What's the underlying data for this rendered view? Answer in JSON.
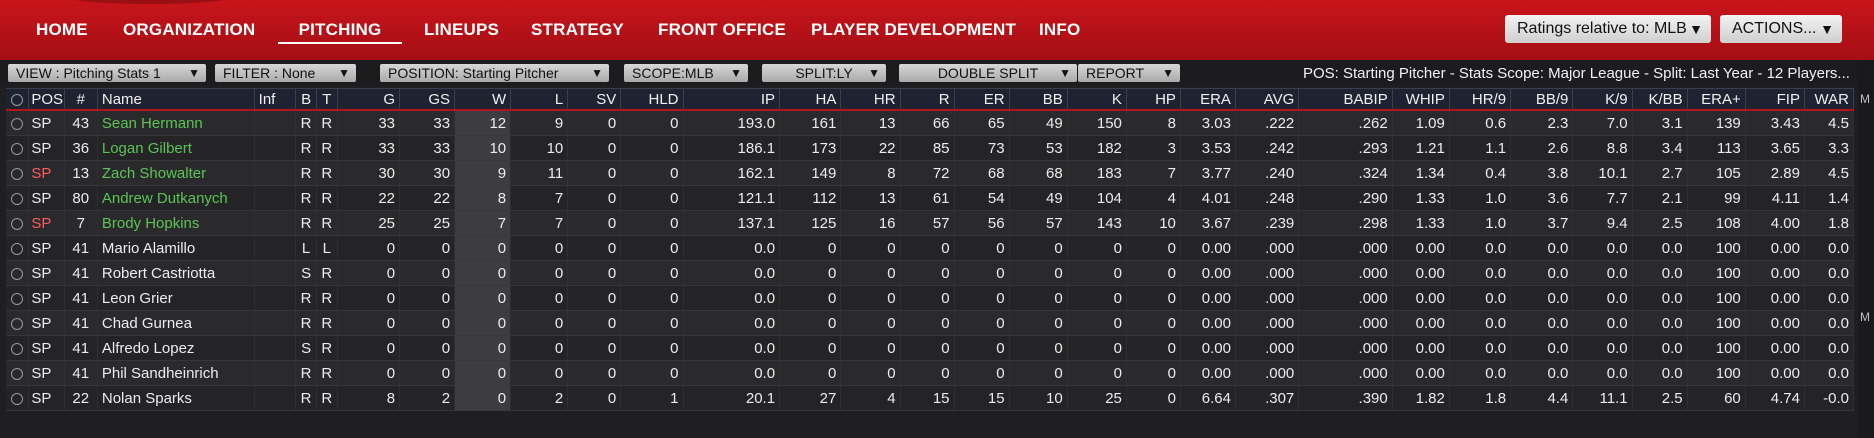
{
  "nav": {
    "items": [
      "HOME",
      "ORGANIZATION",
      "PITCHING",
      "LINEUPS",
      "STRATEGY",
      "FRONT OFFICE",
      "PLAYER DEVELOPMENT",
      "INFO"
    ],
    "active": "PITCHING",
    "ratings_dropdown": "Ratings relative to: MLB",
    "actions_dropdown": "ACTIONS..."
  },
  "filters": {
    "view": "VIEW : Pitching Stats 1",
    "filter": "FILTER : None",
    "position": "POSITION: Starting Pitcher",
    "scope": "SCOPE:MLB",
    "split": "SPLIT:LY",
    "double_split": "DOUBLE SPLIT",
    "report": "REPORT",
    "status": "POS: Starting Pitcher - Stats Scope: Major League - Split: Last Year - 12 Players..."
  },
  "side_strip": [
    "M",
    "M"
  ],
  "table": {
    "columns": [
      "POS",
      "#",
      "Name",
      "Inf",
      "B",
      "T",
      "G",
      "GS",
      "W",
      "L",
      "SV",
      "HLD",
      "IP",
      "HA",
      "HR",
      "R",
      "ER",
      "BB",
      "K",
      "HP",
      "ERA",
      "AVG",
      "BABIP",
      "WHIP",
      "HR/9",
      "BB/9",
      "K/9",
      "K/BB",
      "ERA+",
      "FIP",
      "WAR"
    ],
    "rows": [
      {
        "pos": "SP",
        "num": "43",
        "name": "Sean Hermann",
        "inf": "",
        "b": "R",
        "t": "R",
        "g": "33",
        "gs": "33",
        "w": "12",
        "l": "9",
        "sv": "0",
        "hld": "0",
        "ip": "193.0",
        "ha": "161",
        "hr": "13",
        "r": "66",
        "er": "65",
        "bb": "49",
        "k": "150",
        "hp": "8",
        "era": "3.03",
        "avg": ".222",
        "babip": ".262",
        "whip": "1.09",
        "hr9": "0.6",
        "bb9": "2.3",
        "k9": "7.0",
        "kbb": "3.1",
        "eraplus": "139",
        "fip": "3.43",
        "war": "4.5",
        "name_color": "green",
        "pos_color": "normal"
      },
      {
        "pos": "SP",
        "num": "36",
        "name": "Logan Gilbert",
        "inf": "",
        "b": "R",
        "t": "R",
        "g": "33",
        "gs": "33",
        "w": "10",
        "l": "10",
        "sv": "0",
        "hld": "0",
        "ip": "186.1",
        "ha": "173",
        "hr": "22",
        "r": "85",
        "er": "73",
        "bb": "53",
        "k": "182",
        "hp": "3",
        "era": "3.53",
        "avg": ".242",
        "babip": ".293",
        "whip": "1.21",
        "hr9": "1.1",
        "bb9": "2.6",
        "k9": "8.8",
        "kbb": "3.4",
        "eraplus": "113",
        "fip": "3.65",
        "war": "3.3",
        "name_color": "green",
        "pos_color": "normal"
      },
      {
        "pos": "SP",
        "num": "13",
        "name": "Zach Showalter",
        "inf": "",
        "b": "R",
        "t": "R",
        "g": "30",
        "gs": "30",
        "w": "9",
        "l": "11",
        "sv": "0",
        "hld": "0",
        "ip": "162.1",
        "ha": "149",
        "hr": "8",
        "r": "72",
        "er": "68",
        "bb": "68",
        "k": "183",
        "hp": "7",
        "era": "3.77",
        "avg": ".240",
        "babip": ".324",
        "whip": "1.34",
        "hr9": "0.4",
        "bb9": "3.8",
        "k9": "10.1",
        "kbb": "2.7",
        "eraplus": "105",
        "fip": "2.89",
        "war": "4.5",
        "name_color": "green",
        "pos_color": "red"
      },
      {
        "pos": "SP",
        "num": "80",
        "name": "Andrew Dutkanych",
        "inf": "",
        "b": "R",
        "t": "R",
        "g": "22",
        "gs": "22",
        "w": "8",
        "l": "7",
        "sv": "0",
        "hld": "0",
        "ip": "121.1",
        "ha": "112",
        "hr": "13",
        "r": "61",
        "er": "54",
        "bb": "49",
        "k": "104",
        "hp": "4",
        "era": "4.01",
        "avg": ".248",
        "babip": ".290",
        "whip": "1.33",
        "hr9": "1.0",
        "bb9": "3.6",
        "k9": "7.7",
        "kbb": "2.1",
        "eraplus": "99",
        "fip": "4.11",
        "war": "1.4",
        "name_color": "green",
        "pos_color": "normal"
      },
      {
        "pos": "SP",
        "num": "7",
        "name": "Brody Hopkins",
        "inf": "",
        "b": "R",
        "t": "R",
        "g": "25",
        "gs": "25",
        "w": "7",
        "l": "7",
        "sv": "0",
        "hld": "0",
        "ip": "137.1",
        "ha": "125",
        "hr": "16",
        "r": "57",
        "er": "56",
        "bb": "57",
        "k": "143",
        "hp": "10",
        "era": "3.67",
        "avg": ".239",
        "babip": ".298",
        "whip": "1.33",
        "hr9": "1.0",
        "bb9": "3.7",
        "k9": "9.4",
        "kbb": "2.5",
        "eraplus": "108",
        "fip": "4.00",
        "war": "1.8",
        "name_color": "green",
        "pos_color": "red"
      },
      {
        "pos": "SP",
        "num": "41",
        "name": "Mario Alamillo",
        "inf": "",
        "b": "L",
        "t": "L",
        "g": "0",
        "gs": "0",
        "w": "0",
        "l": "0",
        "sv": "0",
        "hld": "0",
        "ip": "0.0",
        "ha": "0",
        "hr": "0",
        "r": "0",
        "er": "0",
        "bb": "0",
        "k": "0",
        "hp": "0",
        "era": "0.00",
        "avg": ".000",
        "babip": ".000",
        "whip": "0.00",
        "hr9": "0.0",
        "bb9": "0.0",
        "k9": "0.0",
        "kbb": "0.0",
        "eraplus": "100",
        "fip": "0.00",
        "war": "0.0",
        "name_color": "normal",
        "pos_color": "normal"
      },
      {
        "pos": "SP",
        "num": "41",
        "name": "Robert Castriotta",
        "inf": "",
        "b": "S",
        "t": "R",
        "g": "0",
        "gs": "0",
        "w": "0",
        "l": "0",
        "sv": "0",
        "hld": "0",
        "ip": "0.0",
        "ha": "0",
        "hr": "0",
        "r": "0",
        "er": "0",
        "bb": "0",
        "k": "0",
        "hp": "0",
        "era": "0.00",
        "avg": ".000",
        "babip": ".000",
        "whip": "0.00",
        "hr9": "0.0",
        "bb9": "0.0",
        "k9": "0.0",
        "kbb": "0.0",
        "eraplus": "100",
        "fip": "0.00",
        "war": "0.0",
        "name_color": "normal",
        "pos_color": "normal"
      },
      {
        "pos": "SP",
        "num": "41",
        "name": "Leon Grier",
        "inf": "",
        "b": "R",
        "t": "R",
        "g": "0",
        "gs": "0",
        "w": "0",
        "l": "0",
        "sv": "0",
        "hld": "0",
        "ip": "0.0",
        "ha": "0",
        "hr": "0",
        "r": "0",
        "er": "0",
        "bb": "0",
        "k": "0",
        "hp": "0",
        "era": "0.00",
        "avg": ".000",
        "babip": ".000",
        "whip": "0.00",
        "hr9": "0.0",
        "bb9": "0.0",
        "k9": "0.0",
        "kbb": "0.0",
        "eraplus": "100",
        "fip": "0.00",
        "war": "0.0",
        "name_color": "normal",
        "pos_color": "normal"
      },
      {
        "pos": "SP",
        "num": "41",
        "name": "Chad Gurnea",
        "inf": "",
        "b": "R",
        "t": "R",
        "g": "0",
        "gs": "0",
        "w": "0",
        "l": "0",
        "sv": "0",
        "hld": "0",
        "ip": "0.0",
        "ha": "0",
        "hr": "0",
        "r": "0",
        "er": "0",
        "bb": "0",
        "k": "0",
        "hp": "0",
        "era": "0.00",
        "avg": ".000",
        "babip": ".000",
        "whip": "0.00",
        "hr9": "0.0",
        "bb9": "0.0",
        "k9": "0.0",
        "kbb": "0.0",
        "eraplus": "100",
        "fip": "0.00",
        "war": "0.0",
        "name_color": "normal",
        "pos_color": "normal"
      },
      {
        "pos": "SP",
        "num": "41",
        "name": "Alfredo Lopez",
        "inf": "",
        "b": "S",
        "t": "R",
        "g": "0",
        "gs": "0",
        "w": "0",
        "l": "0",
        "sv": "0",
        "hld": "0",
        "ip": "0.0",
        "ha": "0",
        "hr": "0",
        "r": "0",
        "er": "0",
        "bb": "0",
        "k": "0",
        "hp": "0",
        "era": "0.00",
        "avg": ".000",
        "babip": ".000",
        "whip": "0.00",
        "hr9": "0.0",
        "bb9": "0.0",
        "k9": "0.0",
        "kbb": "0.0",
        "eraplus": "100",
        "fip": "0.00",
        "war": "0.0",
        "name_color": "normal",
        "pos_color": "normal"
      },
      {
        "pos": "SP",
        "num": "41",
        "name": "Phil Sandheinrich",
        "inf": "",
        "b": "R",
        "t": "R",
        "g": "0",
        "gs": "0",
        "w": "0",
        "l": "0",
        "sv": "0",
        "hld": "0",
        "ip": "0.0",
        "ha": "0",
        "hr": "0",
        "r": "0",
        "er": "0",
        "bb": "0",
        "k": "0",
        "hp": "0",
        "era": "0.00",
        "avg": ".000",
        "babip": ".000",
        "whip": "0.00",
        "hr9": "0.0",
        "bb9": "0.0",
        "k9": "0.0",
        "kbb": "0.0",
        "eraplus": "100",
        "fip": "0.00",
        "war": "0.0",
        "name_color": "normal",
        "pos_color": "normal"
      },
      {
        "pos": "SP",
        "num": "22",
        "name": "Nolan Sparks",
        "inf": "",
        "b": "R",
        "t": "R",
        "g": "8",
        "gs": "2",
        "w": "0",
        "l": "2",
        "sv": "0",
        "hld": "1",
        "ip": "20.1",
        "ha": "27",
        "hr": "4",
        "r": "15",
        "er": "15",
        "bb": "10",
        "k": "25",
        "hp": "0",
        "era": "6.64",
        "avg": ".307",
        "babip": ".390",
        "whip": "1.82",
        "hr9": "1.8",
        "bb9": "4.4",
        "k9": "11.1",
        "kbb": "2.5",
        "eraplus": "60",
        "fip": "4.74",
        "war": "-0.0",
        "name_color": "normal",
        "pos_color": "normal"
      }
    ]
  },
  "colors": {
    "accent_red": "#b5121a",
    "name_green": "#5cc455",
    "pos_red": "#ff5a5a"
  }
}
